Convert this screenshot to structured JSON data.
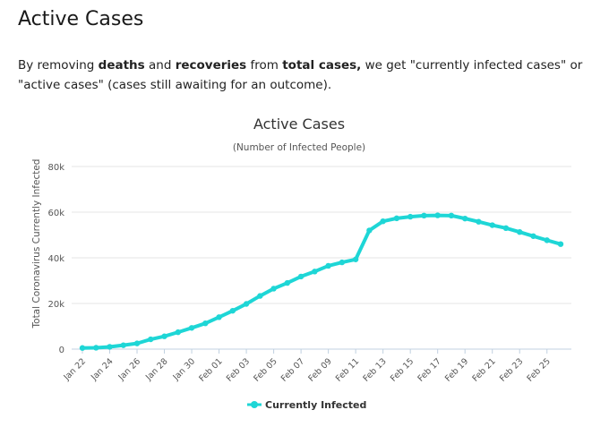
{
  "page": {
    "heading": "Active Cases",
    "intro": {
      "p1": "By removing ",
      "b1": "deaths",
      "p2": " and ",
      "b2": "recoveries",
      "p3": " from ",
      "b3": "total cases,",
      "p4": " we get \"currently infected cases\" or \"active cases\" (cases still awaiting for an outcome)."
    }
  },
  "colors": {
    "series": "#1ed6d6",
    "grid": "#e6e6e6",
    "axis": "#c0d0e0"
  },
  "chart_data": {
    "type": "line",
    "title": "Active Cases",
    "subtitle": "(Number of Infected People)",
    "ylabel": "Total Coronavirus Currently Infected",
    "xlabel": "",
    "ylim": [
      0,
      80000
    ],
    "yticks": [
      0,
      20000,
      40000,
      60000,
      80000
    ],
    "ytick_labels": [
      "0",
      "20k",
      "40k",
      "60k",
      "80k"
    ],
    "grid": true,
    "legend": "bottom-center",
    "x": [
      "Jan 22",
      "Jan 23",
      "Jan 24",
      "Jan 25",
      "Jan 26",
      "Jan 27",
      "Jan 28",
      "Jan 29",
      "Jan 30",
      "Jan 31",
      "Feb 01",
      "Feb 02",
      "Feb 03",
      "Feb 04",
      "Feb 05",
      "Feb 06",
      "Feb 07",
      "Feb 08",
      "Feb 09",
      "Feb 10",
      "Feb 11",
      "Feb 12",
      "Feb 13",
      "Feb 14",
      "Feb 15",
      "Feb 16",
      "Feb 17",
      "Feb 18",
      "Feb 19",
      "Feb 20",
      "Feb 21",
      "Feb 22",
      "Feb 23",
      "Feb 24",
      "Feb 25",
      "Feb 26"
    ],
    "xtick_labels": [
      "Jan 22",
      "Jan 24",
      "Jan 26",
      "Jan 28",
      "Jan 30",
      "Feb 01",
      "Feb 03",
      "Feb 05",
      "Feb 07",
      "Feb 09",
      "Feb 11",
      "Feb 13",
      "Feb 15",
      "Feb 17",
      "Feb 19",
      "Feb 21",
      "Feb 23",
      "Feb 25"
    ],
    "series": [
      {
        "name": "Currently Infected",
        "values": [
          500,
          600,
          1000,
          1700,
          2500,
          4300,
          5600,
          7400,
          9300,
          11300,
          14000,
          16800,
          19800,
          23300,
          26500,
          29000,
          31800,
          34000,
          36500,
          38000,
          39300,
          52000,
          56000,
          57300,
          58000,
          58500,
          58600,
          58500,
          57200,
          55800,
          54300,
          53000,
          51300,
          49500,
          47700,
          46000
        ]
      }
    ]
  }
}
